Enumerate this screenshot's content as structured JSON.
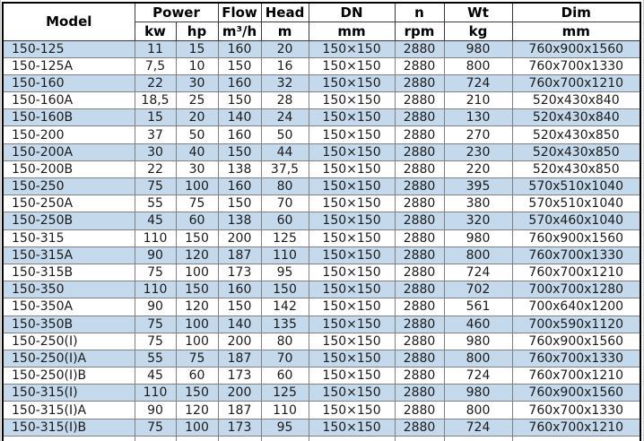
{
  "table": {
    "header": {
      "model": "Model",
      "power": "Power",
      "flow": "Flow",
      "head": "Head",
      "dn": "DN",
      "n": "n",
      "wt": "Wt",
      "dim": "Dim",
      "units": {
        "kw": "kw",
        "hp": "hp",
        "flow": "m³/h",
        "head": "m",
        "dn": "mm",
        "n": "rpm",
        "wt": "kg",
        "dim": "mm"
      }
    },
    "rows": [
      [
        "150-125",
        "11",
        "15",
        "160",
        "20",
        "150×150",
        "2880",
        "980",
        "760x900x1560"
      ],
      [
        "150-125A",
        "7,5",
        "10",
        "150",
        "16",
        "150×150",
        "2880",
        "800",
        "760x700x1330"
      ],
      [
        "150-160",
        "22",
        "30",
        "160",
        "32",
        "150×150",
        "2880",
        "724",
        "760x700x1210"
      ],
      [
        "150-160A",
        "18,5",
        "25",
        "150",
        "28",
        "150×150",
        "2880",
        "210",
        "520x430x840"
      ],
      [
        "150-160B",
        "15",
        "20",
        "140",
        "24",
        "150×150",
        "2880",
        "130",
        "520x430x840"
      ],
      [
        "150-200",
        "37",
        "50",
        "160",
        "50",
        "150×150",
        "2880",
        "270",
        "520x430x850"
      ],
      [
        "150-200A",
        "30",
        "40",
        "150",
        "44",
        "150×150",
        "2880",
        "230",
        "520x430x850"
      ],
      [
        "150-200B",
        "22",
        "30",
        "138",
        "37,5",
        "150×150",
        "2880",
        "220",
        "520x430x850"
      ],
      [
        "150-250",
        "75",
        "100",
        "160",
        "80",
        "150×150",
        "2880",
        "395",
        "570x510x1040"
      ],
      [
        "150-250A",
        "55",
        "75",
        "150",
        "70",
        "150×150",
        "2880",
        "380",
        "570x510x1040"
      ],
      [
        "150-250B",
        "45",
        "60",
        "138",
        "60",
        "150×150",
        "2880",
        "320",
        "570x460x1040"
      ],
      [
        "150-315",
        "110",
        "150",
        "200",
        "125",
        "150×150",
        "2880",
        "980",
        "760x900x1560"
      ],
      [
        "150-315A",
        "90",
        "120",
        "187",
        "110",
        "150×150",
        "2880",
        "800",
        "760x700x1330"
      ],
      [
        "150-315B",
        "75",
        "100",
        "173",
        "95",
        "150×150",
        "2880",
        "724",
        "760x700x1210"
      ],
      [
        "150-350",
        "110",
        "150",
        "160",
        "150",
        "150×150",
        "2880",
        "702",
        "700x700x1280"
      ],
      [
        "150-350A",
        "90",
        "120",
        "150",
        "142",
        "150×150",
        "2880",
        "561",
        "700x640x1200"
      ],
      [
        "150-350B",
        "75",
        "100",
        "140",
        "135",
        "150×150",
        "2880",
        "460",
        "700x590x1120"
      ],
      [
        "150-250(I)",
        "75",
        "100",
        "200",
        "80",
        "150×150",
        "2880",
        "980",
        "760x900x1560"
      ],
      [
        "150-250(I)A",
        "55",
        "75",
        "187",
        "70",
        "150×150",
        "2880",
        "800",
        "760x700x1330"
      ],
      [
        "150-250(I)B",
        "45",
        "60",
        "173",
        "60",
        "150×150",
        "2880",
        "724",
        "760x700x1210"
      ],
      [
        "150-315(I)",
        "110",
        "150",
        "200",
        "125",
        "150×150",
        "2880",
        "980",
        "760x900x1560"
      ],
      [
        "150-315(I)A",
        "90",
        "120",
        "187",
        "110",
        "150×150",
        "2880",
        "800",
        "760x700x1330"
      ],
      [
        "150-315(I)B",
        "75",
        "100",
        "173",
        "95",
        "150×150",
        "2880",
        "724",
        "760x700x1210"
      ]
    ]
  },
  "colors": {
    "row_highlight": "#c4d9ec",
    "grid_line": "#808080",
    "outer_border": "#000000",
    "text": "#1a1a1a"
  }
}
